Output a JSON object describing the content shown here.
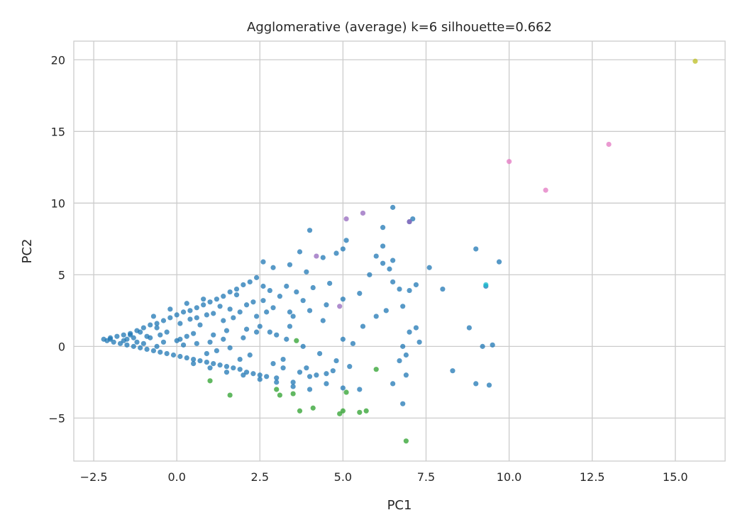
{
  "chart_data": {
    "type": "scatter",
    "title": "Agglomerative (average) k=6 silhouette=0.662",
    "xlabel": "PC1",
    "ylabel": "PC2",
    "xlim": [
      -3.1,
      16.5
    ],
    "ylim": [
      -8.0,
      21.3
    ],
    "xticks": [
      -2.5,
      0.0,
      2.5,
      5.0,
      7.5,
      10.0,
      12.5,
      15.0
    ],
    "xtick_labels": [
      "−2.5",
      "0.0",
      "2.5",
      "5.0",
      "7.5",
      "10.0",
      "12.5",
      "15.0"
    ],
    "yticks": [
      -5,
      0,
      5,
      10,
      15,
      20
    ],
    "ytick_labels": [
      "−5",
      "0",
      "5",
      "10",
      "15",
      "20"
    ],
    "grid": true,
    "series": [
      {
        "color": "#1f77b4",
        "points": [
          [
            -2.2,
            0.5
          ],
          [
            -2.1,
            0.4
          ],
          [
            -2.0,
            0.6
          ],
          [
            -1.9,
            0.3
          ],
          [
            -1.8,
            0.7
          ],
          [
            -1.7,
            0.2
          ],
          [
            -1.6,
            0.8
          ],
          [
            -1.5,
            0.1
          ],
          [
            -1.4,
            0.9
          ],
          [
            -1.3,
            0.0
          ],
          [
            -1.2,
            1.1
          ],
          [
            -1.1,
            -0.1
          ],
          [
            -1.0,
            1.3
          ],
          [
            -0.9,
            -0.2
          ],
          [
            -0.8,
            1.5
          ],
          [
            -0.7,
            -0.3
          ],
          [
            -0.6,
            1.6
          ],
          [
            -0.5,
            -0.4
          ],
          [
            -0.4,
            1.8
          ],
          [
            -0.3,
            -0.5
          ],
          [
            -0.2,
            2.0
          ],
          [
            -0.1,
            -0.6
          ],
          [
            0.0,
            2.2
          ],
          [
            0.1,
            -0.7
          ],
          [
            0.2,
            2.4
          ],
          [
            0.3,
            -0.8
          ],
          [
            0.4,
            2.5
          ],
          [
            0.5,
            -0.9
          ],
          [
            0.6,
            2.7
          ],
          [
            0.7,
            -1.0
          ],
          [
            0.8,
            2.9
          ],
          [
            0.9,
            -1.1
          ],
          [
            1.0,
            3.1
          ],
          [
            1.1,
            -1.2
          ],
          [
            1.2,
            3.3
          ],
          [
            1.3,
            -1.3
          ],
          [
            1.4,
            3.5
          ],
          [
            1.5,
            -1.4
          ],
          [
            1.6,
            3.8
          ],
          [
            1.7,
            -1.5
          ],
          [
            1.8,
            4.0
          ],
          [
            1.9,
            -1.6
          ],
          [
            2.0,
            4.3
          ],
          [
            2.1,
            -1.8
          ],
          [
            2.2,
            4.5
          ],
          [
            2.3,
            -1.9
          ],
          [
            2.4,
            4.8
          ],
          [
            2.5,
            -2.0
          ],
          [
            2.6,
            4.2
          ],
          [
            2.7,
            -2.1
          ],
          [
            -1.5,
            0.5
          ],
          [
            -1.0,
            0.2
          ],
          [
            -0.5,
            0.8
          ],
          [
            0.0,
            0.4
          ],
          [
            0.5,
            0.9
          ],
          [
            1.0,
            0.3
          ],
          [
            1.5,
            1.1
          ],
          [
            2.0,
            0.6
          ],
          [
            2.5,
            1.4
          ],
          [
            3.0,
            0.8
          ],
          [
            -1.2,
            0.3
          ],
          [
            -0.8,
            0.6
          ],
          [
            -0.3,
            1.0
          ],
          [
            0.2,
            0.1
          ],
          [
            0.7,
            1.5
          ],
          [
            1.2,
            -0.3
          ],
          [
            1.7,
            2.0
          ],
          [
            2.2,
            -0.6
          ],
          [
            2.7,
            2.4
          ],
          [
            3.2,
            -0.9
          ],
          [
            -0.6,
            0.0
          ],
          [
            0.3,
            0.7
          ],
          [
            0.9,
            -0.5
          ],
          [
            1.4,
            0.5
          ],
          [
            1.9,
            -0.9
          ],
          [
            2.4,
            1.0
          ],
          [
            2.9,
            -1.2
          ],
          [
            3.4,
            1.4
          ],
          [
            3.9,
            -1.5
          ],
          [
            4.4,
            1.8
          ],
          [
            0.1,
            1.6
          ],
          [
            0.6,
            2.0
          ],
          [
            1.1,
            2.3
          ],
          [
            1.6,
            2.6
          ],
          [
            2.1,
            2.9
          ],
          [
            2.6,
            3.2
          ],
          [
            3.1,
            3.5
          ],
          [
            3.6,
            3.8
          ],
          [
            4.1,
            4.1
          ],
          [
            4.6,
            4.4
          ],
          [
            2.8,
            1.0
          ],
          [
            3.3,
            0.5
          ],
          [
            3.8,
            0.0
          ],
          [
            4.3,
            -0.5
          ],
          [
            4.8,
            -1.0
          ],
          [
            3.5,
            2.1
          ],
          [
            4.0,
            2.5
          ],
          [
            4.5,
            2.9
          ],
          [
            5.0,
            3.3
          ],
          [
            5.5,
            3.7
          ],
          [
            3.0,
            -2.5
          ],
          [
            3.5,
            -2.8
          ],
          [
            4.0,
            -3.0
          ],
          [
            4.5,
            -2.6
          ],
          [
            5.0,
            -2.9
          ],
          [
            3.2,
            -1.5
          ],
          [
            3.7,
            -1.8
          ],
          [
            4.2,
            -2.0
          ],
          [
            4.7,
            -1.7
          ],
          [
            5.2,
            -1.4
          ],
          [
            2.9,
            5.5
          ],
          [
            3.4,
            5.7
          ],
          [
            3.9,
            5.2
          ],
          [
            4.4,
            6.2
          ],
          [
            4.8,
            6.5
          ],
          [
            5.0,
            6.8
          ],
          [
            5.1,
            7.4
          ],
          [
            4.0,
            8.1
          ],
          [
            3.7,
            6.6
          ],
          [
            2.6,
            5.9
          ],
          [
            5.0,
            0.5
          ],
          [
            5.3,
            0.2
          ],
          [
            5.6,
            1.4
          ],
          [
            6.0,
            2.1
          ],
          [
            6.3,
            2.5
          ],
          [
            6.5,
            4.5
          ],
          [
            6.7,
            4.0
          ],
          [
            7.0,
            3.9
          ],
          [
            7.2,
            4.3
          ],
          [
            6.8,
            2.8
          ],
          [
            6.0,
            6.3
          ],
          [
            6.2,
            5.8
          ],
          [
            6.4,
            5.4
          ],
          [
            6.2,
            8.3
          ],
          [
            6.5,
            9.7
          ],
          [
            7.0,
            8.7
          ],
          [
            7.1,
            8.9
          ],
          [
            6.2,
            7.0
          ],
          [
            6.5,
            6.0
          ],
          [
            5.8,
            5.0
          ],
          [
            6.8,
            0.0
          ],
          [
            6.9,
            -0.6
          ],
          [
            7.0,
            1.0
          ],
          [
            6.7,
            -1.0
          ],
          [
            6.5,
            -2.6
          ],
          [
            6.8,
            -4.0
          ],
          [
            6.9,
            -2.0
          ],
          [
            7.6,
            5.5
          ],
          [
            8.0,
            4.0
          ],
          [
            7.3,
            0.3
          ],
          [
            7.2,
            1.3
          ],
          [
            8.3,
            -1.7
          ],
          [
            8.8,
            1.3
          ],
          [
            9.0,
            6.8
          ],
          [
            9.0,
            -2.6
          ],
          [
            9.2,
            0.0
          ],
          [
            9.3,
            4.2
          ],
          [
            9.4,
            -2.7
          ],
          [
            9.5,
            0.1
          ],
          [
            9.7,
            5.9
          ],
          [
            -2.0,
            0.5
          ],
          [
            -1.6,
            0.4
          ],
          [
            -1.3,
            0.6
          ],
          [
            -0.9,
            0.7
          ],
          [
            -0.4,
            0.3
          ],
          [
            0.1,
            0.5
          ],
          [
            0.6,
            0.2
          ],
          [
            1.1,
            0.8
          ],
          [
            1.6,
            -0.1
          ],
          [
            2.1,
            1.2
          ],
          [
            -0.7,
            2.1
          ],
          [
            -0.2,
            2.6
          ],
          [
            0.3,
            3.0
          ],
          [
            0.8,
            3.3
          ],
          [
            1.3,
            2.8
          ],
          [
            1.8,
            3.6
          ],
          [
            2.3,
            3.1
          ],
          [
            2.8,
            3.9
          ],
          [
            3.3,
            4.2
          ],
          [
            3.8,
            3.2
          ],
          [
            0.5,
            -1.2
          ],
          [
            1.0,
            -1.5
          ],
          [
            1.5,
            -1.8
          ],
          [
            2.0,
            -2.0
          ],
          [
            2.5,
            -2.3
          ],
          [
            3.0,
            -2.2
          ],
          [
            3.5,
            -2.5
          ],
          [
            4.0,
            -2.1
          ],
          [
            4.5,
            -1.9
          ],
          [
            5.5,
            -3.0
          ],
          [
            -1.4,
            0.8
          ],
          [
            -1.1,
            1.0
          ],
          [
            -0.6,
            1.3
          ],
          [
            0.4,
            1.9
          ],
          [
            0.9,
            2.2
          ],
          [
            1.4,
            1.8
          ],
          [
            1.9,
            2.4
          ],
          [
            2.4,
            2.1
          ],
          [
            2.9,
            2.7
          ],
          [
            3.4,
            2.4
          ]
        ]
      },
      {
        "color": "#2ca02c",
        "points": [
          [
            1.0,
            -2.4
          ],
          [
            1.6,
            -3.4
          ],
          [
            3.0,
            -3.0
          ],
          [
            3.1,
            -3.4
          ],
          [
            3.5,
            -3.3
          ],
          [
            3.6,
            0.4
          ],
          [
            3.7,
            -4.5
          ],
          [
            4.1,
            -4.3
          ],
          [
            4.9,
            -4.7
          ],
          [
            5.0,
            -4.5
          ],
          [
            5.1,
            -3.2
          ],
          [
            5.5,
            -4.6
          ],
          [
            5.7,
            -4.5
          ],
          [
            6.0,
            -1.6
          ],
          [
            6.9,
            -6.6
          ]
        ]
      },
      {
        "color": "#9467bd",
        "points": [
          [
            4.2,
            6.3
          ],
          [
            4.9,
            2.8
          ],
          [
            5.1,
            8.9
          ],
          [
            5.6,
            9.3
          ],
          [
            7.0,
            8.7
          ]
        ]
      },
      {
        "color": "#17becf",
        "points": [
          [
            9.3,
            4.3
          ]
        ]
      },
      {
        "color": "#e377c2",
        "points": [
          [
            10.0,
            12.9
          ],
          [
            11.1,
            10.9
          ],
          [
            13.0,
            14.1
          ]
        ]
      },
      {
        "color": "#bcbd22",
        "points": [
          [
            15.6,
            19.9
          ]
        ]
      }
    ]
  }
}
